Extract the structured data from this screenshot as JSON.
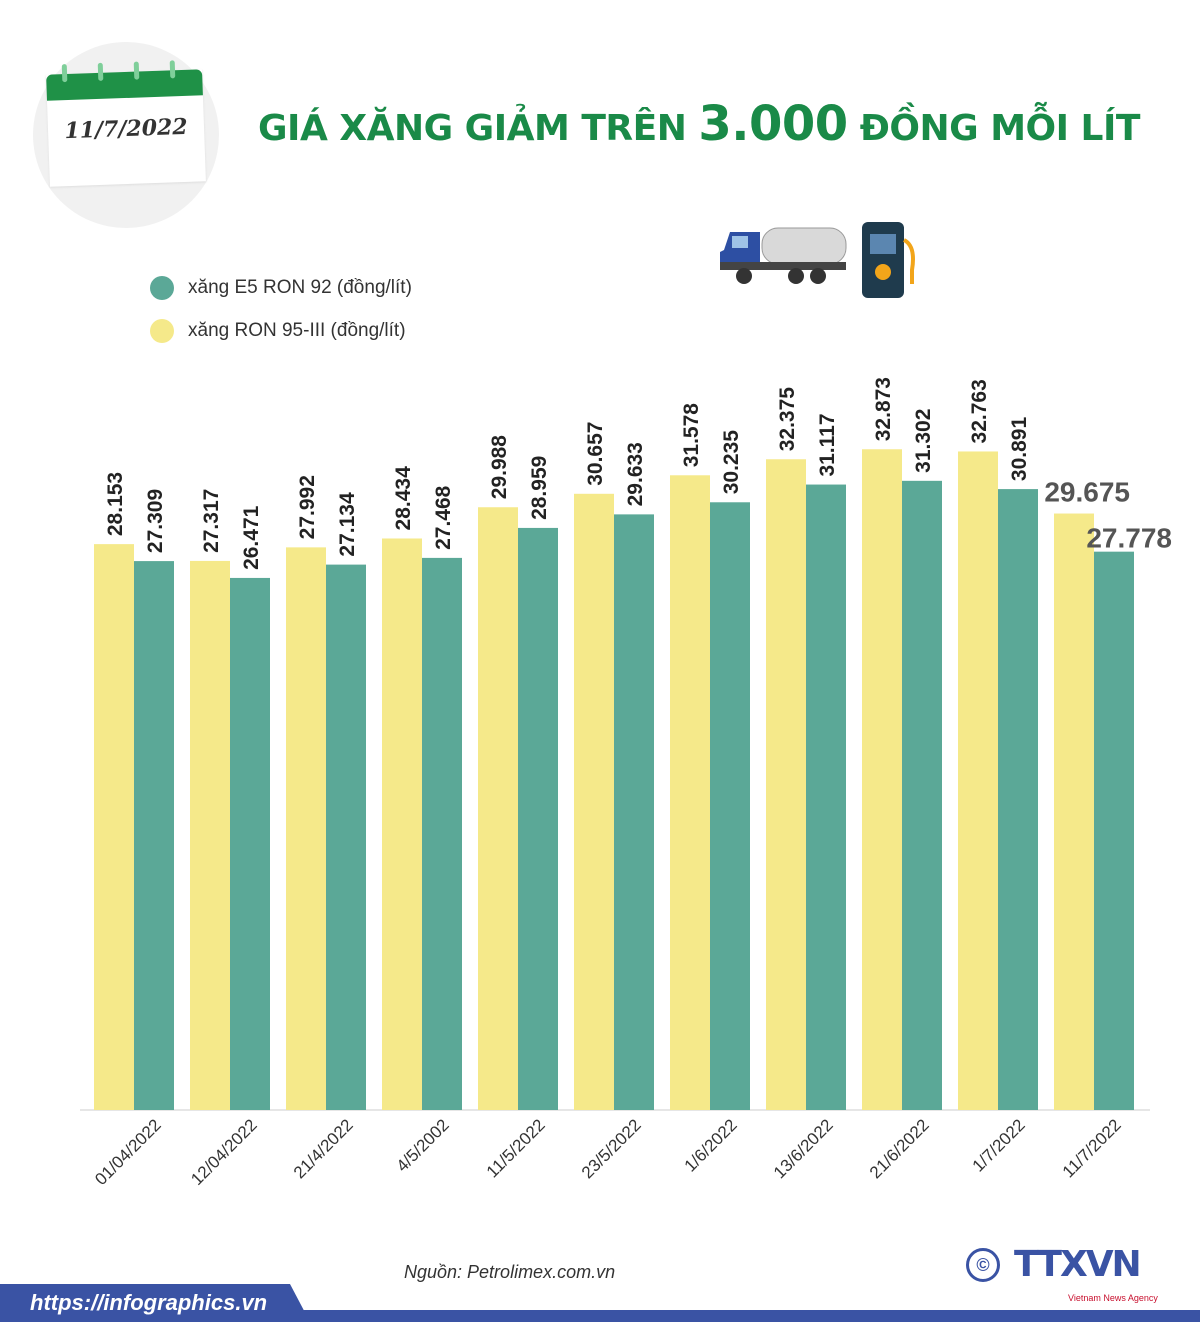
{
  "header": {
    "date": "11/7/2022",
    "title_pre": "GIÁ XĂNG GIẢM TRÊN ",
    "title_big": "3.000",
    "title_post": " ĐỒNG MỖI LÍT"
  },
  "footer": {
    "source": "Nguồn: Petrolimex.com.vn",
    "url": "https://infographics.vn",
    "logo": "TTXVN",
    "agency": "Vietnam News Agency"
  },
  "colors": {
    "ron95": "#f5e98a",
    "e5": "#5ba897",
    "title": "#1a8a48",
    "footer": "#3a53a4"
  },
  "icons": [
    "calendar-icon",
    "tanker-truck-icon",
    "fuel-pump-icon"
  ],
  "chart_data": {
    "type": "bar",
    "title": "",
    "categories": [
      "01/04/2022",
      "12/04/2022",
      "21/4/2022",
      "4/5/2002",
      "11/5/2022",
      "23/5/2022",
      "1/6/2022",
      "13/6/2022",
      "21/6/2022",
      "1/7/2022",
      "11/7/2022"
    ],
    "series": [
      {
        "name": "xăng RON 95-III (đồng/lít)",
        "color": "#f5e98a",
        "values": [
          28.153,
          27.317,
          27.992,
          28.434,
          29.988,
          30.657,
          31.578,
          32.375,
          32.873,
          32.763,
          29.675
        ],
        "labels": [
          "28.153",
          "27.317",
          "27.992",
          "28.434",
          "29.988",
          "30.657",
          "31.578",
          "32.375",
          "32.873",
          "32.763",
          "29.675"
        ]
      },
      {
        "name": "xăng E5 RON 92 (đồng/lít)",
        "color": "#5ba897",
        "values": [
          27.309,
          26.471,
          27.134,
          27.468,
          28.959,
          29.633,
          30.235,
          31.117,
          31.302,
          30.891,
          27.778
        ],
        "labels": [
          "27.309",
          "26.471",
          "27.134",
          "27.468",
          "28.959",
          "29.633",
          "30.235",
          "31.117",
          "31.302",
          "30.891",
          "27.778"
        ]
      }
    ],
    "ylim": [
      0,
      35
    ],
    "grid": false,
    "legend": "top-left"
  }
}
